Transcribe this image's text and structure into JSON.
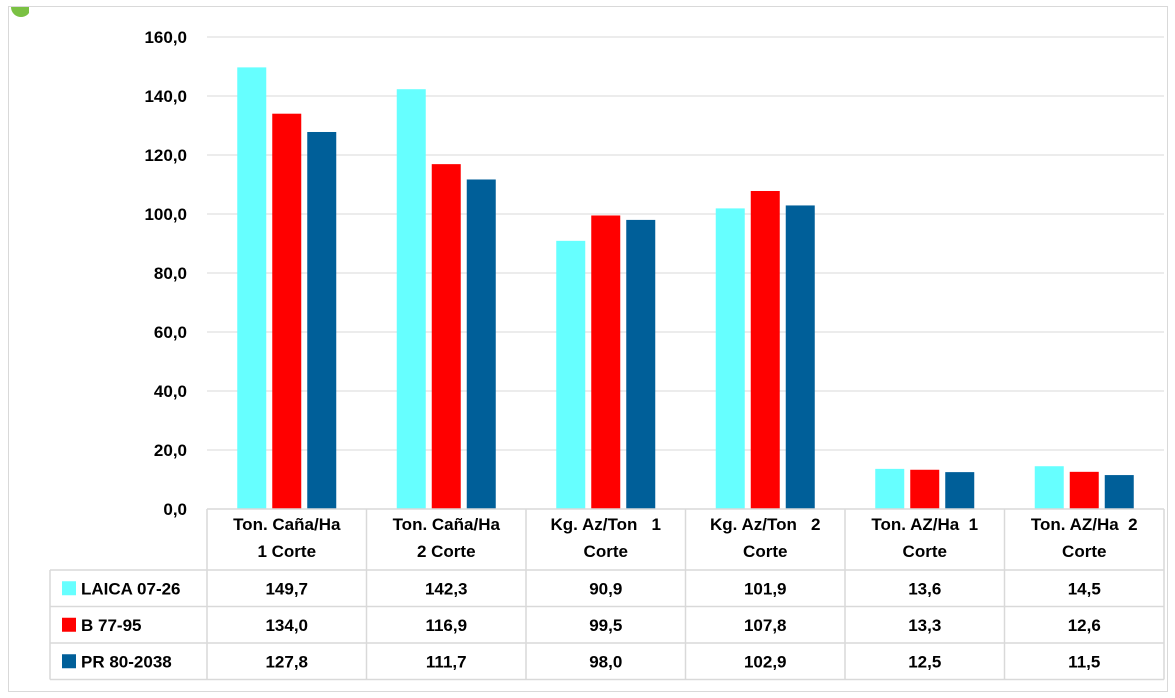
{
  "chart_data": {
    "type": "bar",
    "categories": [
      "Ton. Caña/Ha 1 Corte",
      "Ton. Caña/Ha 2 Corte",
      "Kg. Az/Ton 1 Corte",
      "Kg. Az/Ton 2 Corte",
      "Ton. AZ/Ha 1 Corte",
      "Ton. AZ/Ha 2 Corte"
    ],
    "category_lines": [
      [
        "Ton. Caña/Ha",
        "1 Corte"
      ],
      [
        "Ton. Caña/Ha",
        "2 Corte"
      ],
      [
        "Kg. Az/Ton   1",
        "Corte"
      ],
      [
        "Kg. Az/Ton   2",
        "Corte"
      ],
      [
        "Ton. AZ/Ha  1",
        "Corte"
      ],
      [
        "Ton. AZ/Ha  2",
        "Corte"
      ]
    ],
    "series": [
      {
        "name": "LAICA 07-26",
        "color": "#66ffff",
        "values": [
          149.7,
          142.3,
          90.9,
          101.9,
          13.6,
          14.5
        ],
        "labels": [
          "149,7",
          "142,3",
          "90,9",
          "101,9",
          "13,6",
          "14,5"
        ]
      },
      {
        "name": "B 77-95",
        "color": "#ff0000",
        "values": [
          134.0,
          116.9,
          99.5,
          107.8,
          13.3,
          12.6
        ],
        "labels": [
          "134,0",
          "116,9",
          "99,5",
          "107,8",
          "13,3",
          "12,6"
        ]
      },
      {
        "name": "PR 80-2038",
        "color": "#005f99",
        "values": [
          127.8,
          111.7,
          98.0,
          102.9,
          12.5,
          11.5
        ],
        "labels": [
          "127,8",
          "111,7",
          "98,0",
          "102,9",
          "12,5",
          "11,5"
        ]
      }
    ],
    "ylim": [
      0,
      160
    ],
    "yticks": [
      0,
      20,
      40,
      60,
      80,
      100,
      120,
      140,
      160
    ],
    "ytick_labels": [
      "0,0",
      "20,0",
      "40,0",
      "60,0",
      "80,0",
      "100,0",
      "120,0",
      "140,0",
      "160,0"
    ],
    "grid": true,
    "legend": "data-table",
    "title": "",
    "xlabel": "",
    "ylabel": ""
  },
  "colors": {
    "gridline": "#d9d9d9",
    "table_border": "#d9d9d9",
    "corner_mark": "#7ac143"
  }
}
